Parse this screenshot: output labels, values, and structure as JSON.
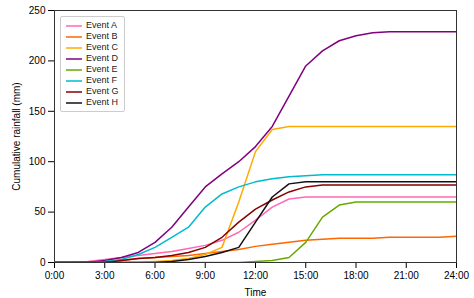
{
  "chart_data": {
    "type": "line",
    "xlabel": "Time",
    "ylabel": "Cumulative rainfall (mm)",
    "x": [
      0,
      1,
      2,
      3,
      4,
      5,
      6,
      7,
      8,
      9,
      10,
      11,
      12,
      13,
      14,
      15,
      16,
      17,
      18,
      19,
      20,
      21,
      22,
      23,
      24
    ],
    "series": [
      {
        "name": "Event A",
        "color": "#ff69b4",
        "values": [
          0,
          0,
          1,
          3,
          5,
          7,
          9,
          11,
          14,
          17,
          22,
          30,
          42,
          55,
          63,
          65,
          65,
          65,
          65,
          65,
          65,
          65,
          65,
          65,
          65
        ]
      },
      {
        "name": "Event B",
        "color": "#ff6600",
        "values": [
          0,
          0,
          0,
          1,
          2,
          4,
          5,
          6,
          7,
          9,
          11,
          13,
          16,
          18,
          20,
          22,
          23,
          24,
          24,
          24,
          25,
          25,
          25,
          25,
          26
        ]
      },
      {
        "name": "Event C",
        "color": "#ffaa00",
        "values": [
          0,
          0,
          0,
          0,
          0,
          0,
          1,
          2,
          4,
          8,
          15,
          60,
          110,
          132,
          135,
          135,
          135,
          135,
          135,
          135,
          135,
          135,
          135,
          135,
          135
        ]
      },
      {
        "name": "Event D",
        "color": "#800080",
        "values": [
          0,
          0,
          0,
          2,
          5,
          10,
          20,
          35,
          55,
          75,
          88,
          100,
          115,
          135,
          165,
          195,
          210,
          220,
          225,
          228,
          229,
          229,
          229,
          229,
          229
        ]
      },
      {
        "name": "Event E",
        "color": "#66aa00",
        "values": [
          0,
          0,
          0,
          0,
          0,
          0,
          0,
          0,
          0,
          0,
          0,
          0,
          1,
          2,
          5,
          20,
          45,
          57,
          60,
          60,
          60,
          60,
          60,
          60,
          60
        ]
      },
      {
        "name": "Event F",
        "color": "#00bbcc",
        "values": [
          0,
          0,
          0,
          1,
          3,
          8,
          15,
          25,
          35,
          55,
          68,
          75,
          80,
          83,
          85,
          86,
          87,
          87,
          87,
          87,
          87,
          87,
          87,
          87,
          87
        ]
      },
      {
        "name": "Event G",
        "color": "#880000",
        "values": [
          0,
          0,
          0,
          0,
          2,
          4,
          5,
          7,
          10,
          15,
          25,
          40,
          53,
          62,
          70,
          75,
          77,
          77,
          77,
          77,
          77,
          77,
          77,
          77,
          77
        ]
      },
      {
        "name": "Event H",
        "color": "#111111",
        "values": [
          0,
          0,
          0,
          0,
          0,
          0,
          0,
          1,
          3,
          6,
          10,
          15,
          40,
          65,
          78,
          80,
          80,
          80,
          80,
          80,
          80,
          80,
          80,
          80,
          80
        ]
      }
    ],
    "xlim": [
      0,
      24
    ],
    "ylim": [
      0,
      250
    ],
    "xticks": [
      {
        "value": 0,
        "label": "0:00"
      },
      {
        "value": 3,
        "label": "3:00"
      },
      {
        "value": 6,
        "label": "6:00"
      },
      {
        "value": 9,
        "label": "9:00"
      },
      {
        "value": 12,
        "label": "12:00"
      },
      {
        "value": 15,
        "label": "15:00"
      },
      {
        "value": 18,
        "label": "18:00"
      },
      {
        "value": 21,
        "label": "21:00"
      },
      {
        "value": 24,
        "label": "24:00"
      }
    ],
    "yticks": [
      0,
      50,
      100,
      150,
      200,
      250
    ],
    "legend": "upper left",
    "grid": false
  }
}
